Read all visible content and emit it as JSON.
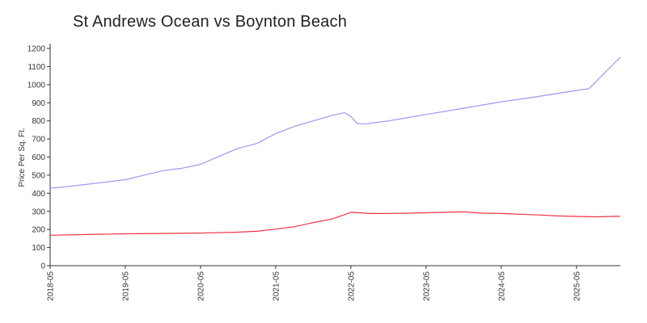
{
  "chart_data": {
    "type": "line",
    "title": "St Andrews Ocean vs Boynton Beach",
    "ylabel": "Price Per Sq. Ft.",
    "xlabel": "",
    "ylim": [
      0,
      1200
    ],
    "yticks": [
      0,
      100,
      200,
      300,
      400,
      500,
      600,
      700,
      800,
      900,
      1000,
      1100,
      1200
    ],
    "xlim": [
      "2018-05",
      "2025-12"
    ],
    "xticks": [
      "2018-05",
      "2019-05",
      "2020-05",
      "2021-05",
      "2022-05",
      "2023-05",
      "2024-05",
      "2025-05"
    ],
    "grid": false,
    "legend": "none",
    "series": [
      {
        "color": "#9999ee",
        "points": [
          [
            "2018-05",
            428
          ],
          [
            "2018-08",
            438
          ],
          [
            "2018-11",
            450
          ],
          [
            "2019-02",
            462
          ],
          [
            "2019-05",
            475
          ],
          [
            "2019-08",
            500
          ],
          [
            "2019-11",
            525
          ],
          [
            "2020-02",
            538
          ],
          [
            "2020-05",
            560
          ],
          [
            "2020-08",
            605
          ],
          [
            "2020-11",
            648
          ],
          [
            "2021-02",
            675
          ],
          [
            "2021-05",
            730
          ],
          [
            "2021-08",
            770
          ],
          [
            "2021-11",
            800
          ],
          [
            "2022-02",
            830
          ],
          [
            "2022-04",
            845
          ],
          [
            "2022-05",
            825
          ],
          [
            "2022-06",
            785
          ],
          [
            "2022-07",
            782
          ],
          [
            "2022-11",
            800
          ],
          [
            "2023-05",
            835
          ],
          [
            "2023-11",
            870
          ],
          [
            "2024-05",
            905
          ],
          [
            "2024-11",
            935
          ],
          [
            "2025-05",
            968
          ],
          [
            "2025-07",
            978
          ],
          [
            "2025-12",
            1152
          ]
        ]
      },
      {
        "color": "#ee3344",
        "points": [
          [
            "2018-05",
            168
          ],
          [
            "2018-11",
            172
          ],
          [
            "2019-05",
            176
          ],
          [
            "2019-11",
            178
          ],
          [
            "2020-05",
            180
          ],
          [
            "2020-11",
            185
          ],
          [
            "2021-02",
            190
          ],
          [
            "2021-05",
            202
          ],
          [
            "2021-08",
            215
          ],
          [
            "2021-11",
            238
          ],
          [
            "2022-02",
            258
          ],
          [
            "2022-05",
            295
          ],
          [
            "2022-08",
            288
          ],
          [
            "2022-11",
            288
          ],
          [
            "2023-02",
            290
          ],
          [
            "2023-05",
            292
          ],
          [
            "2023-08",
            295
          ],
          [
            "2023-11",
            297
          ],
          [
            "2024-02",
            290
          ],
          [
            "2024-05",
            288
          ],
          [
            "2024-08",
            284
          ],
          [
            "2024-11",
            280
          ],
          [
            "2025-02",
            275
          ],
          [
            "2025-05",
            272
          ],
          [
            "2025-08",
            270
          ],
          [
            "2025-12",
            273
          ]
        ]
      }
    ]
  }
}
